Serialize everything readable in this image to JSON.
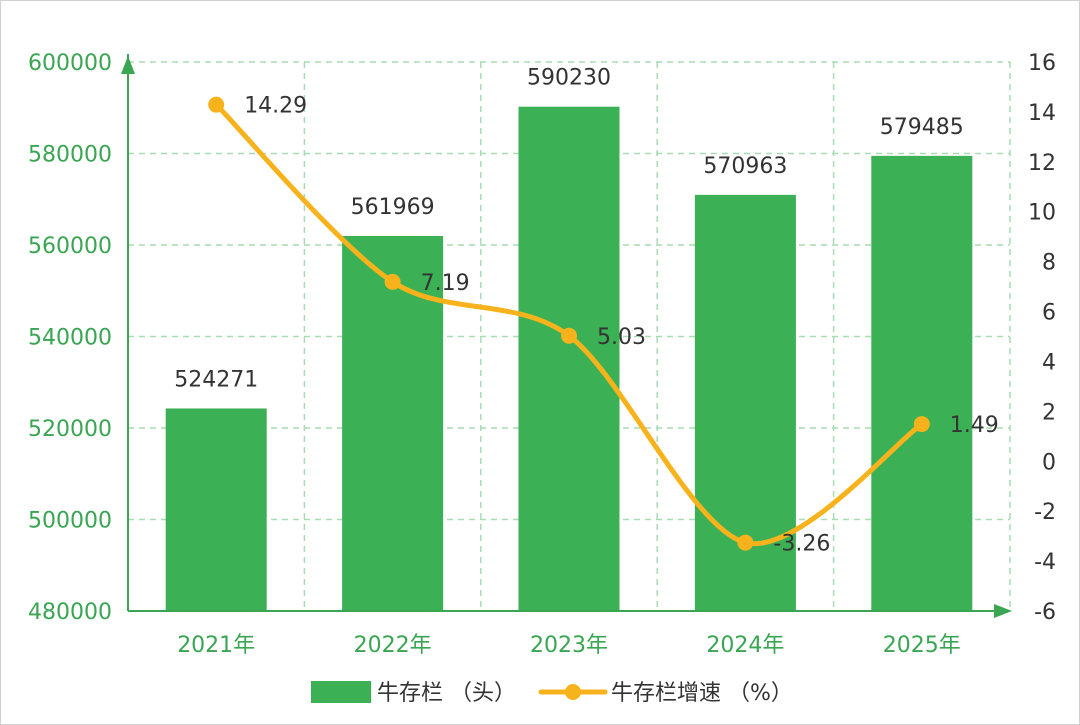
{
  "chart_data": {
    "type": "bar",
    "categories": [
      "2021年",
      "2022年",
      "2023年",
      "2024年",
      "2025年"
    ],
    "series": [
      {
        "name": "牛存栏 （头）",
        "type": "bar",
        "axis": "left",
        "values": [
          524271,
          561969,
          590230,
          570963,
          579485
        ],
        "labels": [
          "524271",
          "561969",
          "590230",
          "570963",
          "579485"
        ]
      },
      {
        "name": "牛存栏增速 （%）",
        "type": "line",
        "axis": "right",
        "values": [
          14.29,
          7.19,
          5.03,
          -3.26,
          1.49
        ],
        "labels": [
          "14.29",
          "7.19",
          "5.03",
          "-3.26",
          "1.49"
        ]
      }
    ],
    "left_axis": {
      "min": 480000,
      "max": 600000,
      "ticks": [
        "480000",
        "500000",
        "520000",
        "540000",
        "560000",
        "580000",
        "600000"
      ]
    },
    "right_axis": {
      "min": -6,
      "max": 16,
      "ticks": [
        "-6",
        "-4",
        "-2",
        "0",
        "2",
        "4",
        "6",
        "8",
        "10",
        "12",
        "14",
        "16"
      ]
    },
    "grid": true,
    "legend_position": "bottom-center",
    "colors": {
      "bar": "#3cb054",
      "line": "#f8b31c",
      "axis": "#3aa552",
      "grid": "#a8dcb4"
    }
  }
}
